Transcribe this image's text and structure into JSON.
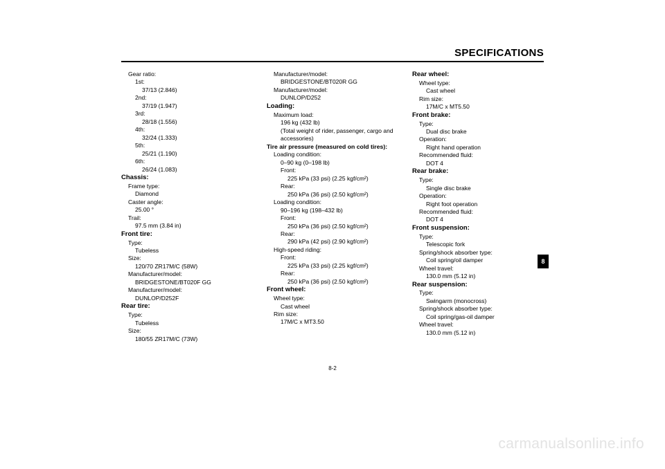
{
  "title": "SPECIFICATIONS",
  "page_number": "8-2",
  "tab_number": "8",
  "watermark": "carmanualsonline.info",
  "col1": [
    {
      "cls": "l1",
      "txt": "Gear ratio:"
    },
    {
      "cls": "l2",
      "txt": "1st:"
    },
    {
      "cls": "l3",
      "txt": "37/13 (2.846)"
    },
    {
      "cls": "l2",
      "txt": "2nd:"
    },
    {
      "cls": "l3",
      "txt": "37/19 (1.947)"
    },
    {
      "cls": "l2",
      "txt": "3rd:"
    },
    {
      "cls": "l3",
      "txt": "28/18 (1.556)"
    },
    {
      "cls": "l2",
      "txt": "4th:"
    },
    {
      "cls": "l3",
      "txt": "32/24 (1.333)"
    },
    {
      "cls": "l2",
      "txt": "5th:"
    },
    {
      "cls": "l3",
      "txt": "25/21 (1.190)"
    },
    {
      "cls": "l2",
      "txt": "6th:"
    },
    {
      "cls": "l3",
      "txt": "26/24 (1.083)"
    },
    {
      "cls": "sec",
      "txt": "Chassis:"
    },
    {
      "cls": "l1",
      "txt": "Frame type:"
    },
    {
      "cls": "l2",
      "txt": "Diamond"
    },
    {
      "cls": "l1",
      "txt": "Caster angle:"
    },
    {
      "cls": "l2",
      "txt": "25.00 °"
    },
    {
      "cls": "l1",
      "txt": "Trail:"
    },
    {
      "cls": "l2",
      "txt": "97.5 mm (3.84 in)"
    },
    {
      "cls": "sec",
      "txt": "Front tire:"
    },
    {
      "cls": "l1",
      "txt": "Type:"
    },
    {
      "cls": "l2",
      "txt": "Tubeless"
    },
    {
      "cls": "l1",
      "txt": "Size:"
    },
    {
      "cls": "l2",
      "txt": "120/70 ZR17M/C (58W)"
    },
    {
      "cls": "l1",
      "txt": "Manufacturer/model:"
    },
    {
      "cls": "l2",
      "txt": "BRIDGESTONE/BT020F GG"
    },
    {
      "cls": "l1",
      "txt": "Manufacturer/model:"
    },
    {
      "cls": "l2",
      "txt": "DUNLOP/D252F"
    },
    {
      "cls": "sec",
      "txt": "Rear tire:"
    },
    {
      "cls": "l1",
      "txt": "Type:"
    },
    {
      "cls": "l2",
      "txt": "Tubeless"
    },
    {
      "cls": "l1",
      "txt": "Size:"
    },
    {
      "cls": "l2",
      "txt": "180/55 ZR17M/C (73W)"
    }
  ],
  "col2": [
    {
      "cls": "l1",
      "txt": "Manufacturer/model:"
    },
    {
      "cls": "l2",
      "txt": "BRIDGESTONE/BT020R GG"
    },
    {
      "cls": "l1",
      "txt": "Manufacturer/model:"
    },
    {
      "cls": "l2",
      "txt": "DUNLOP/D252"
    },
    {
      "cls": "sec",
      "txt": "Loading:"
    },
    {
      "cls": "l1",
      "txt": "Maximum load:"
    },
    {
      "cls": "l2",
      "txt": "196 kg (432 lb)"
    },
    {
      "cls": "l2",
      "txt": "(Total weight of rider, passenger, cargo and accessories)"
    },
    {
      "cls": "subb",
      "txt": "Tire air pressure (measured on cold tires):"
    },
    {
      "cls": "l1",
      "txt": "Loading condition:"
    },
    {
      "cls": "l2",
      "txt": "0–90 kg (0–198 lb)"
    },
    {
      "cls": "l2",
      "txt": "Front:"
    },
    {
      "cls": "l3",
      "txt": "225 kPa (33 psi) (2.25 kgf/cm²)"
    },
    {
      "cls": "l2",
      "txt": "Rear:"
    },
    {
      "cls": "l3",
      "txt": "250 kPa (36 psi) (2.50 kgf/cm²)"
    },
    {
      "cls": "l1",
      "txt": "Loading condition:"
    },
    {
      "cls": "l2",
      "txt": "90–196 kg (198–432 lb)"
    },
    {
      "cls": "l2",
      "txt": "Front:"
    },
    {
      "cls": "l3",
      "txt": "250 kPa (36 psi) (2.50 kgf/cm²)"
    },
    {
      "cls": "l2",
      "txt": "Rear:"
    },
    {
      "cls": "l3",
      "txt": "290 kPa (42 psi) (2.90 kgf/cm²)"
    },
    {
      "cls": "l1",
      "txt": "High-speed riding:"
    },
    {
      "cls": "l2",
      "txt": "Front:"
    },
    {
      "cls": "l3",
      "txt": "225 kPa (33 psi) (2.25 kgf/cm²)"
    },
    {
      "cls": "l2",
      "txt": "Rear:"
    },
    {
      "cls": "l3",
      "txt": "250 kPa (36 psi) (2.50 kgf/cm²)"
    },
    {
      "cls": "sec",
      "txt": "Front wheel:"
    },
    {
      "cls": "l1",
      "txt": "Wheel type:"
    },
    {
      "cls": "l2",
      "txt": "Cast wheel"
    },
    {
      "cls": "l1",
      "txt": "Rim size:"
    },
    {
      "cls": "l2",
      "txt": "17M/C x MT3.50"
    }
  ],
  "col3": [
    {
      "cls": "sec",
      "txt": "Rear wheel:"
    },
    {
      "cls": "l1",
      "txt": "Wheel type:"
    },
    {
      "cls": "l2",
      "txt": "Cast wheel"
    },
    {
      "cls": "l1",
      "txt": "Rim size:"
    },
    {
      "cls": "l2",
      "txt": "17M/C x MT5.50"
    },
    {
      "cls": "sec",
      "txt": "Front brake:"
    },
    {
      "cls": "l1",
      "txt": "Type:"
    },
    {
      "cls": "l2",
      "txt": "Dual disc brake"
    },
    {
      "cls": "l1",
      "txt": "Operation:"
    },
    {
      "cls": "l2",
      "txt": "Right hand operation"
    },
    {
      "cls": "l1",
      "txt": "Recommended fluid:"
    },
    {
      "cls": "l2",
      "txt": "DOT 4"
    },
    {
      "cls": "sec",
      "txt": "Rear brake:"
    },
    {
      "cls": "l1",
      "txt": "Type:"
    },
    {
      "cls": "l2",
      "txt": "Single disc brake"
    },
    {
      "cls": "l1",
      "txt": "Operation:"
    },
    {
      "cls": "l2",
      "txt": "Right foot operation"
    },
    {
      "cls": "l1",
      "txt": "Recommended fluid:"
    },
    {
      "cls": "l2",
      "txt": "DOT 4"
    },
    {
      "cls": "sec",
      "txt": "Front suspension:"
    },
    {
      "cls": "l1",
      "txt": "Type:"
    },
    {
      "cls": "l2",
      "txt": "Telescopic fork"
    },
    {
      "cls": "l1",
      "txt": "Spring/shock absorber type:"
    },
    {
      "cls": "l2",
      "txt": "Coil spring/oil damper"
    },
    {
      "cls": "l1",
      "txt": "Wheel travel:"
    },
    {
      "cls": "l2",
      "txt": "130.0 mm (5.12 in)"
    },
    {
      "cls": "sec",
      "txt": "Rear suspension:"
    },
    {
      "cls": "l1",
      "txt": "Type:"
    },
    {
      "cls": "l2",
      "txt": "Swingarm (monocross)"
    },
    {
      "cls": "l1",
      "txt": "Spring/shock absorber type:"
    },
    {
      "cls": "l2",
      "txt": "Coil spring/gas-oil damper"
    },
    {
      "cls": "l1",
      "txt": "Wheel travel:"
    },
    {
      "cls": "l2",
      "txt": "130.0 mm (5.12 in)"
    }
  ]
}
